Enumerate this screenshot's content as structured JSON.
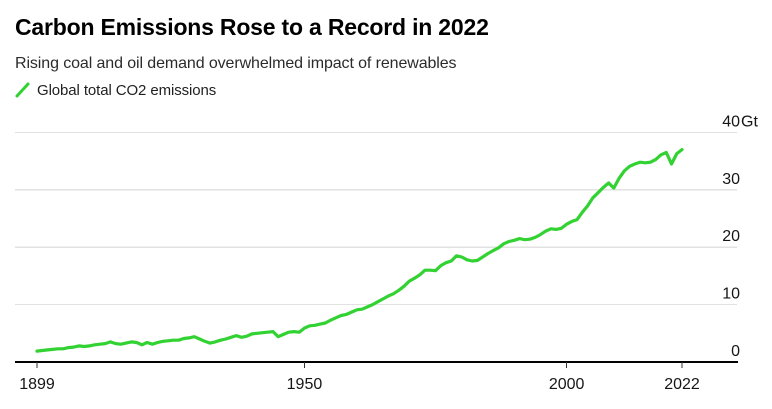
{
  "header": {
    "title": "Carbon Emissions Rose to a Record in 2022",
    "subtitle": "Rising coal and oil demand overwhelmed impact of renewables"
  },
  "legend": {
    "marker": "line-slash-icon",
    "label": "Global total CO2 emissions"
  },
  "colors": {
    "line": "#32d232",
    "grid": "#e2e2e2",
    "axis": "#000000",
    "tick_text": "#161616",
    "title_text": "#000000",
    "subtitle_text": "#2b2b2b",
    "background": "#ffffff"
  },
  "chart_data": {
    "type": "line",
    "title": "Carbon Emissions Rose to a Record in 2022",
    "subtitle": "Rising coal and oil demand overwhelmed impact of renewables",
    "xlabel": "",
    "ylabel": "Gt",
    "xlim": [
      1894.8,
      2032.7
    ],
    "ylim": [
      0,
      40
    ],
    "grid": "horizontal",
    "legend_position": "top-left",
    "y_unit": "Gt",
    "x_ticks": [
      {
        "value": 1899,
        "label": "1899"
      },
      {
        "value": 1950,
        "label": "1950"
      },
      {
        "value": 2000,
        "label": "2000"
      },
      {
        "value": 2022,
        "label": "2022"
      }
    ],
    "y_ticks": [
      {
        "value": 0,
        "label": "0",
        "unit": ""
      },
      {
        "value": 10,
        "label": "10",
        "unit": ""
      },
      {
        "value": 20,
        "label": "20",
        "unit": ""
      },
      {
        "value": 30,
        "label": "30",
        "unit": ""
      },
      {
        "value": 40,
        "label": "40",
        "unit": "Gt"
      }
    ],
    "series": [
      {
        "name": "Global total CO2 emissions",
        "color": "#32d232",
        "points": [
          [
            1899,
            1.9
          ],
          [
            1900,
            2.0
          ],
          [
            1901,
            2.1
          ],
          [
            1902,
            2.2
          ],
          [
            1903,
            2.3
          ],
          [
            1904,
            2.3
          ],
          [
            1905,
            2.5
          ],
          [
            1906,
            2.6
          ],
          [
            1907,
            2.8
          ],
          [
            1908,
            2.7
          ],
          [
            1909,
            2.8
          ],
          [
            1910,
            3.0
          ],
          [
            1911,
            3.1
          ],
          [
            1912,
            3.2
          ],
          [
            1913,
            3.5
          ],
          [
            1914,
            3.2
          ],
          [
            1915,
            3.1
          ],
          [
            1916,
            3.3
          ],
          [
            1917,
            3.5
          ],
          [
            1918,
            3.4
          ],
          [
            1919,
            3.0
          ],
          [
            1920,
            3.4
          ],
          [
            1921,
            3.1
          ],
          [
            1922,
            3.4
          ],
          [
            1923,
            3.6
          ],
          [
            1924,
            3.7
          ],
          [
            1925,
            3.8
          ],
          [
            1926,
            3.8
          ],
          [
            1927,
            4.1
          ],
          [
            1928,
            4.2
          ],
          [
            1929,
            4.4
          ],
          [
            1930,
            4.0
          ],
          [
            1931,
            3.6
          ],
          [
            1932,
            3.3
          ],
          [
            1933,
            3.5
          ],
          [
            1934,
            3.8
          ],
          [
            1935,
            4.0
          ],
          [
            1936,
            4.3
          ],
          [
            1937,
            4.6
          ],
          [
            1938,
            4.3
          ],
          [
            1939,
            4.5
          ],
          [
            1940,
            4.9
          ],
          [
            1941,
            5.0
          ],
          [
            1942,
            5.1
          ],
          [
            1943,
            5.2
          ],
          [
            1944,
            5.3
          ],
          [
            1945,
            4.4
          ],
          [
            1946,
            4.8
          ],
          [
            1947,
            5.2
          ],
          [
            1948,
            5.3
          ],
          [
            1949,
            5.2
          ],
          [
            1950,
            5.9
          ],
          [
            1951,
            6.3
          ],
          [
            1952,
            6.4
          ],
          [
            1953,
            6.6
          ],
          [
            1954,
            6.8
          ],
          [
            1955,
            7.3
          ],
          [
            1956,
            7.7
          ],
          [
            1957,
            8.1
          ],
          [
            1958,
            8.3
          ],
          [
            1959,
            8.7
          ],
          [
            1960,
            9.1
          ],
          [
            1961,
            9.2
          ],
          [
            1962,
            9.6
          ],
          [
            1963,
            10.0
          ],
          [
            1964,
            10.5
          ],
          [
            1965,
            11.0
          ],
          [
            1966,
            11.5
          ],
          [
            1967,
            11.9
          ],
          [
            1968,
            12.5
          ],
          [
            1969,
            13.2
          ],
          [
            1970,
            14.1
          ],
          [
            1971,
            14.6
          ],
          [
            1972,
            15.2
          ],
          [
            1973,
            16.0
          ],
          [
            1974,
            16.0
          ],
          [
            1975,
            15.9
          ],
          [
            1976,
            16.8
          ],
          [
            1977,
            17.3
          ],
          [
            1978,
            17.6
          ],
          [
            1979,
            18.5
          ],
          [
            1980,
            18.3
          ],
          [
            1981,
            17.8
          ],
          [
            1982,
            17.6
          ],
          [
            1983,
            17.7
          ],
          [
            1984,
            18.3
          ],
          [
            1985,
            18.9
          ],
          [
            1986,
            19.4
          ],
          [
            1987,
            19.9
          ],
          [
            1988,
            20.6
          ],
          [
            1989,
            21.0
          ],
          [
            1990,
            21.2
          ],
          [
            1991,
            21.5
          ],
          [
            1992,
            21.3
          ],
          [
            1993,
            21.4
          ],
          [
            1994,
            21.7
          ],
          [
            1995,
            22.2
          ],
          [
            1996,
            22.8
          ],
          [
            1997,
            23.2
          ],
          [
            1998,
            23.1
          ],
          [
            1999,
            23.3
          ],
          [
            2000,
            24.0
          ],
          [
            2001,
            24.5
          ],
          [
            2002,
            24.8
          ],
          [
            2003,
            26.1
          ],
          [
            2004,
            27.2
          ],
          [
            2005,
            28.6
          ],
          [
            2006,
            29.5
          ],
          [
            2007,
            30.4
          ],
          [
            2008,
            31.2
          ],
          [
            2009,
            30.3
          ],
          [
            2010,
            32.0
          ],
          [
            2011,
            33.3
          ],
          [
            2012,
            34.1
          ],
          [
            2013,
            34.5
          ],
          [
            2014,
            34.8
          ],
          [
            2015,
            34.7
          ],
          [
            2016,
            34.8
          ],
          [
            2017,
            35.3
          ],
          [
            2018,
            36.1
          ],
          [
            2019,
            36.5
          ],
          [
            2020,
            34.5
          ],
          [
            2021,
            36.3
          ],
          [
            2022,
            37.0
          ]
        ]
      }
    ]
  }
}
